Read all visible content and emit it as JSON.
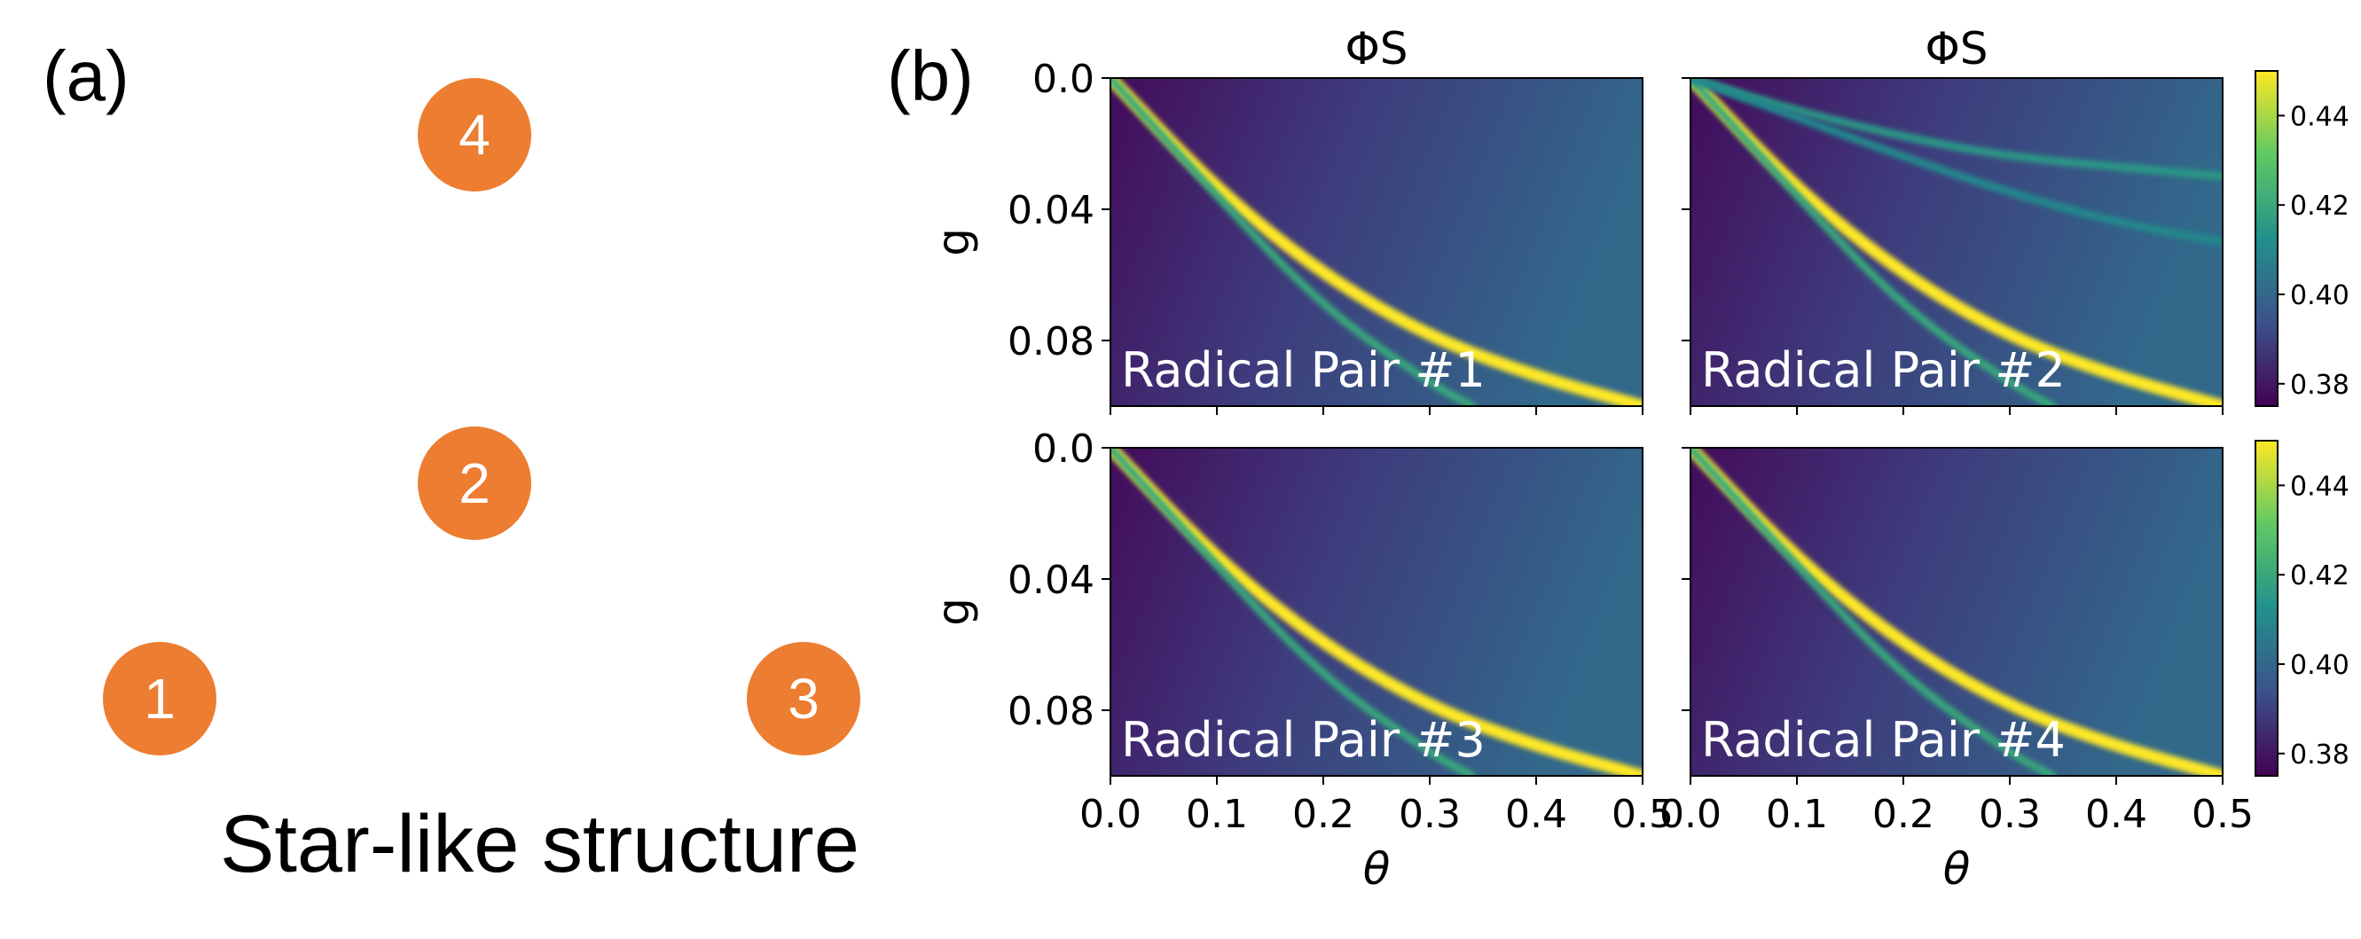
{
  "panel_a": {
    "label": "(a)",
    "nodes": [
      {
        "label": "4"
      },
      {
        "label": "2"
      },
      {
        "label": "1"
      },
      {
        "label": "3"
      }
    ],
    "caption": "Star-like structure"
  },
  "panel_b": {
    "label": "(b)"
  },
  "colors": {
    "node": "#ED7D31",
    "colormap": [
      "#440154",
      "#3b528b",
      "#21918c",
      "#5ec962",
      "#fde725"
    ]
  },
  "chart_data": [
    {
      "type": "heatmap",
      "title": "ΦS",
      "panel_text": "Radical Pair #1",
      "xlabel": "",
      "ylabel": "g",
      "xlim": [
        0.0,
        0.5
      ],
      "ylim": [
        0.0,
        0.1
      ],
      "y_inverted": true,
      "xticks": [
        "0.0",
        "0.1",
        "0.2",
        "0.3",
        "0.4",
        "0.5"
      ],
      "yticks": [
        "0.0",
        "0.04",
        "0.08"
      ],
      "colorbar": {
        "range": [
          0.375,
          0.45
        ],
        "ticks": [
          "0.44",
          "0.42",
          "0.40",
          "0.38"
        ]
      },
      "bright_lines": [
        {
          "g_at_theta": [
            [
              0,
              0
            ],
            [
              0.1,
              0.034
            ],
            [
              0.2,
              0.06
            ],
            [
              0.3,
              0.079
            ],
            [
              0.4,
              0.091
            ],
            [
              0.5,
              0.1
            ]
          ],
          "peak": 0.45
        },
        {
          "g_at_theta": [
            [
              0,
              0
            ],
            [
              0.1,
              0.036
            ],
            [
              0.2,
              0.07
            ],
            [
              0.3,
              0.093
            ],
            [
              0.34,
              0.1
            ]
          ],
          "peak": 0.42
        }
      ]
    },
    {
      "type": "heatmap",
      "title": "ΦS",
      "panel_text": "Radical Pair #2",
      "xlabel": "",
      "ylabel": "",
      "xlim": [
        0.0,
        0.5
      ],
      "ylim": [
        0.0,
        0.1
      ],
      "y_inverted": true,
      "xticks": [
        "0.0",
        "0.1",
        "0.2",
        "0.3",
        "0.4",
        "0.5"
      ],
      "yticks": [
        "0.0",
        "0.04",
        "0.08"
      ],
      "colorbar": null,
      "bright_lines": [
        {
          "g_at_theta": [
            [
              0,
              0
            ],
            [
              0.1,
              0.034
            ],
            [
              0.2,
              0.06
            ],
            [
              0.3,
              0.079
            ],
            [
              0.4,
              0.091
            ],
            [
              0.5,
              0.1
            ]
          ],
          "peak": 0.45
        },
        {
          "g_at_theta": [
            [
              0,
              0
            ],
            [
              0.1,
              0.036
            ],
            [
              0.2,
              0.07
            ],
            [
              0.3,
              0.093
            ],
            [
              0.34,
              0.1
            ]
          ],
          "peak": 0.42
        },
        {
          "g_at_theta": [
            [
              0,
              0
            ],
            [
              0.1,
              0.01
            ],
            [
              0.2,
              0.018
            ],
            [
              0.3,
              0.024
            ],
            [
              0.4,
              0.027
            ],
            [
              0.5,
              0.03
            ]
          ],
          "peak": 0.415
        },
        {
          "g_at_theta": [
            [
              0,
              0
            ],
            [
              0.1,
              0.012
            ],
            [
              0.2,
              0.024
            ],
            [
              0.3,
              0.035
            ],
            [
              0.4,
              0.044
            ],
            [
              0.5,
              0.05
            ]
          ],
          "peak": 0.41
        }
      ]
    },
    {
      "type": "heatmap",
      "title": "",
      "panel_text": "Radical Pair #3",
      "xlabel": "θ",
      "ylabel": "g",
      "xlim": [
        0.0,
        0.5
      ],
      "ylim": [
        0.0,
        0.1
      ],
      "y_inverted": true,
      "xticks": [
        "0.0",
        "0.1",
        "0.2",
        "0.3",
        "0.4",
        "0.5"
      ],
      "yticks": [
        "0.0",
        "0.04",
        "0.08"
      ],
      "colorbar": {
        "range": [
          0.375,
          0.45
        ],
        "ticks": [
          "0.44",
          "0.42",
          "0.40",
          "0.38"
        ]
      },
      "bright_lines": [
        {
          "g_at_theta": [
            [
              0,
              0
            ],
            [
              0.1,
              0.034
            ],
            [
              0.2,
              0.06
            ],
            [
              0.3,
              0.079
            ],
            [
              0.4,
              0.091
            ],
            [
              0.5,
              0.1
            ]
          ],
          "peak": 0.45
        },
        {
          "g_at_theta": [
            [
              0,
              0
            ],
            [
              0.1,
              0.036
            ],
            [
              0.2,
              0.07
            ],
            [
              0.3,
              0.093
            ],
            [
              0.34,
              0.1
            ]
          ],
          "peak": 0.42
        }
      ]
    },
    {
      "type": "heatmap",
      "title": "",
      "panel_text": "Radical Pair #4",
      "xlabel": "θ",
      "ylabel": "",
      "xlim": [
        0.0,
        0.5
      ],
      "ylim": [
        0.0,
        0.1
      ],
      "y_inverted": true,
      "xticks": [
        "0.0",
        "0.1",
        "0.2",
        "0.3",
        "0.4",
        "0.5"
      ],
      "yticks": [
        "0.0",
        "0.04",
        "0.08"
      ],
      "colorbar": null,
      "bright_lines": [
        {
          "g_at_theta": [
            [
              0,
              0
            ],
            [
              0.1,
              0.034
            ],
            [
              0.2,
              0.06
            ],
            [
              0.3,
              0.079
            ],
            [
              0.4,
              0.091
            ],
            [
              0.5,
              0.1
            ]
          ],
          "peak": 0.45
        },
        {
          "g_at_theta": [
            [
              0,
              0
            ],
            [
              0.1,
              0.036
            ],
            [
              0.2,
              0.07
            ],
            [
              0.3,
              0.093
            ],
            [
              0.34,
              0.1
            ]
          ],
          "peak": 0.42
        }
      ]
    }
  ]
}
